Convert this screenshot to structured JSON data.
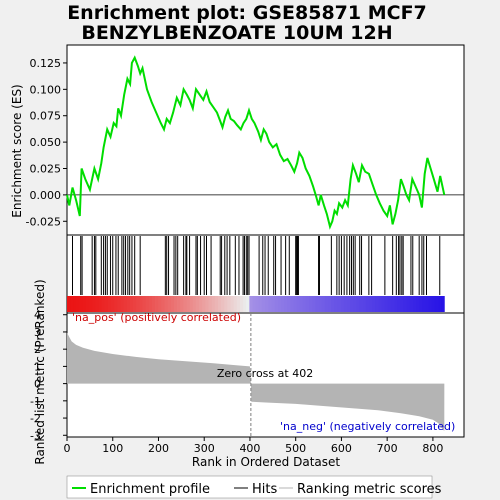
{
  "title_line1": "Enrichment plot: GSE85871 MCF7",
  "title_line2": "BENZYLBENZOATE 10UM 12H",
  "legend": {
    "enrichment_profile": "Enrichment profile",
    "hits": "Hits",
    "ranking_metric": "Ranking metric scores"
  },
  "colors": {
    "enrichment": "#00dd00",
    "hits": "#000000",
    "ranking": "#b4b4b4",
    "pos_label": "#cc0000",
    "neg_label": "#0000cc",
    "zero_line": "#808080"
  },
  "annotations": {
    "pos_label": "'na_pos' (positively correlated)",
    "neg_label": "'na_neg' (negatively correlated)",
    "zero_cross": "Zero cross at 402"
  },
  "chart_data": {
    "type": "line",
    "n_genes": 825,
    "zero_cross": 402,
    "xlabel": "Rank in Ordered Dataset",
    "x_ticks": [
      0,
      100,
      200,
      300,
      400,
      500,
      600,
      700,
      800
    ],
    "xlim": [
      0,
      868
    ],
    "es_panel": {
      "ylabel": "Enrichment score (ES)",
      "ylim": [
        -0.038,
        0.142
      ],
      "y_ticks": [
        -0.025,
        0.0,
        0.025,
        0.05,
        0.075,
        0.1,
        0.125
      ],
      "y_tick_labels": [
        "-0.025",
        "0.000",
        "0.025",
        "0.050",
        "0.075",
        "0.100",
        "0.125"
      ],
      "points": [
        [
          0,
          0.0
        ],
        [
          5,
          -0.01
        ],
        [
          12,
          0.007
        ],
        [
          20,
          -0.005
        ],
        [
          28,
          -0.02
        ],
        [
          32,
          0.025
        ],
        [
          40,
          0.015
        ],
        [
          50,
          0.005
        ],
        [
          60,
          0.025
        ],
        [
          68,
          0.015
        ],
        [
          75,
          0.03
        ],
        [
          80,
          0.045
        ],
        [
          88,
          0.062
        ],
        [
          95,
          0.055
        ],
        [
          102,
          0.068
        ],
        [
          108,
          0.065
        ],
        [
          112,
          0.082
        ],
        [
          118,
          0.075
        ],
        [
          125,
          0.095
        ],
        [
          132,
          0.11
        ],
        [
          138,
          0.105
        ],
        [
          142,
          0.125
        ],
        [
          148,
          0.13
        ],
        [
          155,
          0.122
        ],
        [
          160,
          0.115
        ],
        [
          165,
          0.12
        ],
        [
          175,
          0.1
        ],
        [
          185,
          0.088
        ],
        [
          195,
          0.078
        ],
        [
          205,
          0.068
        ],
        [
          212,
          0.062
        ],
        [
          218,
          0.072
        ],
        [
          225,
          0.068
        ],
        [
          232,
          0.078
        ],
        [
          240,
          0.092
        ],
        [
          248,
          0.085
        ],
        [
          255,
          0.1
        ],
        [
          262,
          0.095
        ],
        [
          268,
          0.09
        ],
        [
          275,
          0.082
        ],
        [
          282,
          0.1
        ],
        [
          290,
          0.095
        ],
        [
          298,
          0.09
        ],
        [
          305,
          0.098
        ],
        [
          312,
          0.088
        ],
        [
          320,
          0.083
        ],
        [
          328,
          0.078
        ],
        [
          335,
          0.07
        ],
        [
          340,
          0.064
        ],
        [
          346,
          0.074
        ],
        [
          352,
          0.08
        ],
        [
          358,
          0.072
        ],
        [
          365,
          0.07
        ],
        [
          372,
          0.066
        ],
        [
          380,
          0.062
        ],
        [
          386,
          0.068
        ],
        [
          392,
          0.072
        ],
        [
          398,
          0.08
        ],
        [
          404,
          0.072
        ],
        [
          410,
          0.068
        ],
        [
          418,
          0.06
        ],
        [
          424,
          0.052
        ],
        [
          430,
          0.062
        ],
        [
          436,
          0.058
        ],
        [
          442,
          0.05
        ],
        [
          450,
          0.045
        ],
        [
          458,
          0.048
        ],
        [
          466,
          0.038
        ],
        [
          474,
          0.032
        ],
        [
          482,
          0.034
        ],
        [
          490,
          0.028
        ],
        [
          497,
          0.022
        ],
        [
          503,
          0.03
        ],
        [
          508,
          0.04
        ],
        [
          515,
          0.035
        ],
        [
          522,
          0.025
        ],
        [
          530,
          0.018
        ],
        [
          538,
          0.008
        ],
        [
          545,
          -0.002
        ],
        [
          550,
          -0.01
        ],
        [
          555,
          0.0
        ],
        [
          562,
          -0.01
        ],
        [
          568,
          -0.018
        ],
        [
          575,
          -0.03
        ],
        [
          580,
          -0.025
        ],
        [
          585,
          -0.015
        ],
        [
          590,
          -0.018
        ],
        [
          595,
          -0.008
        ],
        [
          602,
          -0.012
        ],
        [
          608,
          -0.005
        ],
        [
          614,
          -0.01
        ],
        [
          620,
          0.015
        ],
        [
          625,
          0.028
        ],
        [
          632,
          0.02
        ],
        [
          638,
          0.012
        ],
        [
          645,
          0.028
        ],
        [
          652,
          0.022
        ],
        [
          660,
          0.02
        ],
        [
          668,
          0.01
        ],
        [
          676,
          0.0
        ],
        [
          684,
          -0.008
        ],
        [
          692,
          -0.015
        ],
        [
          700,
          -0.02
        ],
        [
          706,
          -0.01
        ],
        [
          712,
          -0.028
        ],
        [
          718,
          -0.018
        ],
        [
          724,
          -0.005
        ],
        [
          730,
          0.015
        ],
        [
          736,
          0.008
        ],
        [
          742,
          0.0
        ],
        [
          748,
          -0.005
        ],
        [
          755,
          0.015
        ],
        [
          762,
          0.008
        ],
        [
          770,
          0.0
        ],
        [
          776,
          -0.012
        ],
        [
          782,
          0.02
        ],
        [
          788,
          0.035
        ],
        [
          795,
          0.025
        ],
        [
          802,
          0.015
        ],
        [
          810,
          0.003
        ],
        [
          816,
          0.018
        ],
        [
          825,
          0.0
        ]
      ]
    },
    "hits_panel": {
      "hit_ranks": [
        12,
        30,
        33,
        55,
        60,
        63,
        75,
        80,
        84,
        88,
        95,
        100,
        107,
        112,
        120,
        124,
        128,
        133,
        137,
        142,
        148,
        160,
        215,
        218,
        222,
        234,
        238,
        242,
        255,
        260,
        262,
        268,
        282,
        285,
        292,
        300,
        305,
        315,
        335,
        338,
        345,
        350,
        356,
        368,
        376,
        385,
        388,
        392,
        395,
        398,
        420,
        428,
        433,
        440,
        452,
        456,
        468,
        478,
        486,
        500,
        502,
        504,
        506,
        550,
        552,
        578,
        590,
        595,
        600,
        606,
        612,
        618,
        622,
        626,
        630,
        640,
        644,
        660,
        666,
        695,
        712,
        720,
        725,
        728,
        732,
        735,
        752,
        756,
        770,
        776,
        780,
        786,
        815
      ]
    },
    "ranking_panel": {
      "ylabel": "Ranked list metric (PreRanked)",
      "ylim": [
        -3.1,
        4.1
      ],
      "y_ticks": [
        -3,
        -2,
        -1,
        0,
        1,
        2,
        3,
        4
      ],
      "points": [
        [
          0,
          2.95
        ],
        [
          5,
          2.7
        ],
        [
          10,
          2.45
        ],
        [
          20,
          2.25
        ],
        [
          35,
          2.08
        ],
        [
          60,
          1.9
        ],
        [
          100,
          1.72
        ],
        [
          150,
          1.55
        ],
        [
          200,
          1.42
        ],
        [
          260,
          1.3
        ],
        [
          320,
          1.18
        ],
        [
          370,
          1.07
        ],
        [
          400,
          1.0
        ],
        [
          402,
          0.0
        ],
        [
          403,
          -1.05
        ],
        [
          440,
          -1.1
        ],
        [
          500,
          -1.18
        ],
        [
          560,
          -1.3
        ],
        [
          620,
          -1.42
        ],
        [
          680,
          -1.55
        ],
        [
          730,
          -1.72
        ],
        [
          770,
          -1.9
        ],
        [
          800,
          -2.1
        ],
        [
          812,
          -2.3
        ],
        [
          820,
          -2.6
        ],
        [
          825,
          -2.75
        ]
      ]
    }
  }
}
